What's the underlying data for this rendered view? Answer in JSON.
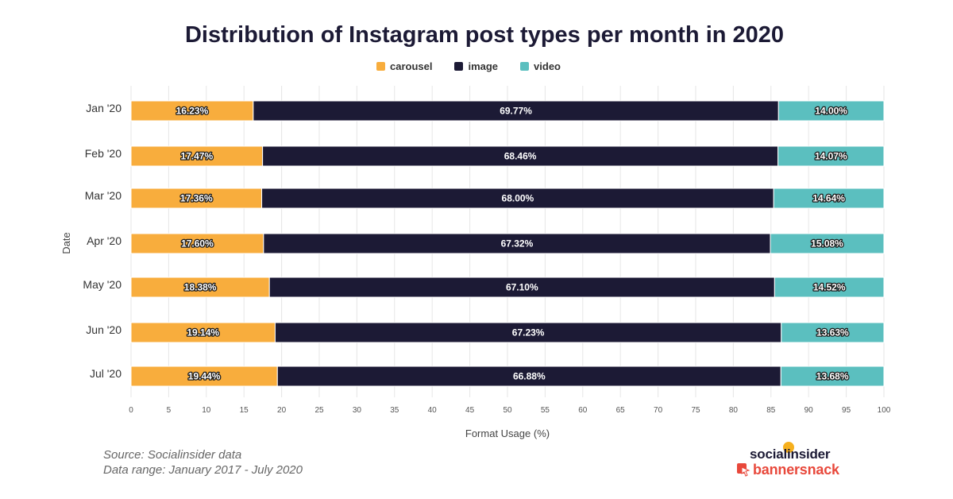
{
  "title": "Distribution of Instagram post types per month in 2020",
  "legend": [
    {
      "label": "carousel",
      "color": "#f8ad3d"
    },
    {
      "label": "image",
      "color": "#1c1a35"
    },
    {
      "label": "video",
      "color": "#5bbfbf"
    }
  ],
  "chart_data": {
    "type": "bar",
    "orientation": "horizontal",
    "stacked": true,
    "categories": [
      "Jan '20",
      "Feb '20",
      "Mar '20",
      "Apr '20",
      "May '20",
      "Jun '20",
      "Jul '20"
    ],
    "series": [
      {
        "name": "carousel",
        "color": "#f8ad3d",
        "values": [
          16.23,
          17.47,
          17.36,
          17.6,
          18.38,
          19.14,
          19.44
        ],
        "labels": [
          "16.23%",
          "17.47%",
          "17.36%",
          "17.60%",
          "18.38%",
          "19.14%",
          "19.44%"
        ]
      },
      {
        "name": "image",
        "color": "#1c1a35",
        "values": [
          69.77,
          68.46,
          68.0,
          67.32,
          67.1,
          67.23,
          66.88
        ],
        "labels": [
          "69.77%",
          "68.46%",
          "68.00%",
          "67.32%",
          "67.10%",
          "67.23%",
          "66.88%"
        ]
      },
      {
        "name": "video",
        "color": "#5bbfbf",
        "values": [
          14.0,
          14.07,
          14.64,
          15.08,
          14.52,
          13.63,
          13.68
        ],
        "labels": [
          "14.00%",
          "14.07%",
          "14.64%",
          "15.08%",
          "14.52%",
          "13.63%",
          "13.68%"
        ]
      }
    ],
    "xlabel": "Format Usage (%)",
    "ylabel": "Date",
    "xlim": [
      0,
      100
    ],
    "xticks": [
      "0",
      "5",
      "10",
      "15",
      "20",
      "25",
      "30",
      "35",
      "40",
      "45",
      "50",
      "55",
      "60",
      "65",
      "70",
      "75",
      "80",
      "85",
      "90",
      "95",
      "100"
    ],
    "grid": true,
    "legend_position": "top-center"
  },
  "source": {
    "line1": "Source: Socialinsider data",
    "line2": "Data range: January 2017 - July 2020"
  },
  "logo": {
    "line1": "socialinsider",
    "line2": "bannersnack"
  }
}
